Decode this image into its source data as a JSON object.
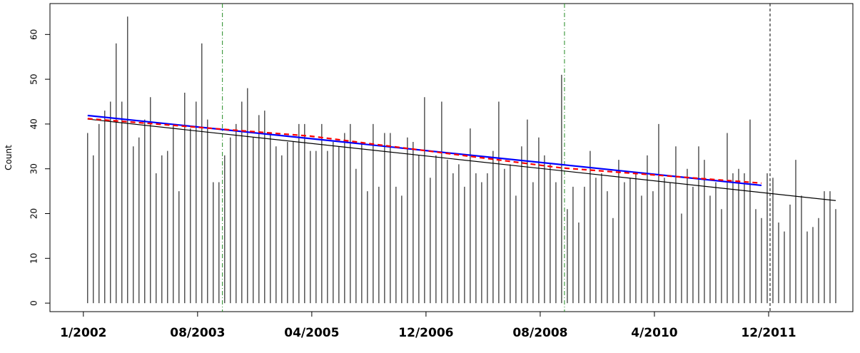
{
  "chart_data": {
    "type": "spike",
    "y_label": "Count",
    "x": [
      1,
      2,
      3,
      4,
      5,
      6,
      7,
      8,
      9,
      10,
      11,
      12,
      13,
      14,
      15,
      16,
      17,
      18,
      19,
      20,
      21,
      22,
      23,
      24,
      25,
      26,
      27,
      28,
      29,
      30,
      31,
      32,
      33,
      34,
      35,
      36,
      37,
      38,
      39,
      40,
      41,
      42,
      43,
      44,
      45,
      46,
      47,
      48,
      49,
      50,
      51,
      52,
      53,
      54,
      55,
      56,
      57,
      58,
      59,
      60,
      61,
      62,
      63,
      64,
      65,
      66,
      67,
      68,
      69,
      70,
      71,
      72,
      73,
      74,
      75,
      76,
      77,
      78,
      79,
      80,
      81,
      82,
      83,
      84,
      85,
      86,
      87,
      88,
      89,
      90,
      91,
      92,
      93,
      94,
      95,
      96,
      97,
      98,
      99,
      100,
      101,
      102,
      103,
      104,
      105,
      106,
      107,
      108,
      109,
      110,
      111,
      112,
      113,
      114,
      115,
      116,
      117,
      118,
      119,
      120,
      121,
      122,
      123,
      124,
      125,
      126,
      127,
      128,
      129,
      130,
      131,
      132
    ],
    "values": [
      38,
      33,
      40,
      43,
      45,
      58,
      45,
      64,
      35,
      37,
      41,
      46,
      29,
      33,
      34,
      40,
      25,
      47,
      39,
      45,
      58,
      41,
      27,
      27,
      33,
      37,
      40,
      45,
      48,
      37,
      42,
      43,
      38,
      35,
      33,
      36,
      36,
      40,
      40,
      34,
      34,
      40,
      34,
      36,
      35,
      38,
      40,
      30,
      36,
      25,
      40,
      26,
      38,
      38,
      26,
      24,
      37,
      36,
      33,
      46,
      28,
      33,
      45,
      32,
      29,
      31,
      26,
      39,
      29,
      27,
      29,
      34,
      45,
      30,
      31,
      24,
      35,
      41,
      27,
      37,
      33,
      31,
      27,
      51,
      21,
      26,
      18,
      26,
      34,
      28,
      29,
      25,
      19,
      32,
      27,
      28,
      29,
      24,
      33,
      25,
      40,
      28,
      27,
      35,
      20,
      30,
      26,
      35,
      32,
      24,
      27,
      21,
      38,
      29,
      30,
      29,
      41,
      21,
      19,
      29,
      28,
      18,
      16,
      22,
      32,
      24,
      16,
      17,
      19,
      25,
      25,
      21
    ],
    "color": "#000000",
    "lines": [
      {
        "color": "#000000",
        "dash": "none",
        "x": [
          1,
          132
        ],
        "values": [
          41.1,
          22.9
        ]
      },
      {
        "color": "#0000ff",
        "dash": "none",
        "x": [
          1,
          119
        ],
        "values": [
          41.9,
          26.3
        ]
      },
      {
        "color": "#ff0000",
        "dash": "7 5",
        "x": [
          1,
          40,
          84,
          119
        ],
        "values": [
          41.2,
          37.3,
          30.2,
          26.8
        ]
      }
    ],
    "vlines": [
      {
        "x": 24.6,
        "color": "#228b22",
        "dash": "6 3 1 3"
      },
      {
        "x": 84.5,
        "color": "#228b22",
        "dash": "6 3 1 3"
      },
      {
        "x": 120.5,
        "color": "#000000",
        "dash": "4 3"
      }
    ],
    "xlim": [
      -5.6,
      135
    ],
    "ylim": [
      -1.9,
      66.9
    ],
    "xticks": [
      {
        "value": 0.25,
        "label": "1/2002"
      },
      {
        "value": 20.25,
        "label": "08/2003"
      },
      {
        "value": 40.25,
        "label": "04/2005"
      },
      {
        "value": 60.25,
        "label": "12/2006"
      },
      {
        "value": 80.25,
        "label": "08/2008"
      },
      {
        "value": 100.25,
        "label": "4/2010"
      },
      {
        "value": 120.25,
        "label": "12/2011"
      }
    ],
    "yticks": [
      0,
      10,
      20,
      30,
      40,
      50,
      60
    ]
  }
}
